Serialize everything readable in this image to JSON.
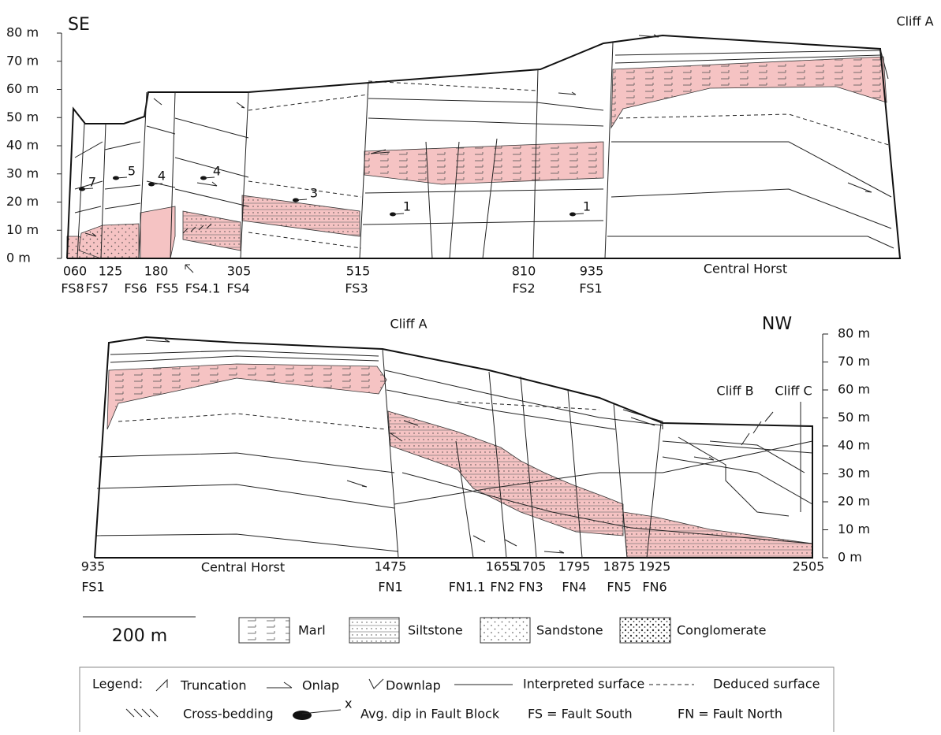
{
  "top_section": {
    "side": "SE",
    "cliff": "Cliff A",
    "y_axis": [
      "80 m",
      "70 m",
      "60 m",
      "50 m",
      "40 m",
      "30 m",
      "20 m",
      "10 m",
      "0 m"
    ],
    "distances": [
      "0",
      "60",
      "125",
      "180",
      "305",
      "515",
      "810",
      "935"
    ],
    "faults": [
      "FS8",
      "FS7",
      "FS6",
      "FS5",
      "FS4.1",
      "FS4",
      "FS3",
      "FS2",
      "FS1"
    ],
    "central": "Central Horst",
    "dips": [
      "7",
      "5",
      "4",
      "4",
      "3",
      "1",
      "1"
    ]
  },
  "bottom_section": {
    "side": "NW",
    "cliffs": [
      "Cliff A",
      "Cliff B",
      "Cliff C"
    ],
    "y_axis": [
      "80 m",
      "70 m",
      "60 m",
      "50 m",
      "40 m",
      "30 m",
      "20 m",
      "10 m",
      "0 m"
    ],
    "distances": [
      "935",
      "1475",
      "1655",
      "1705",
      "1795",
      "1875",
      "1925",
      "2505"
    ],
    "faults": [
      "FS1",
      "FN1",
      "FN1.1",
      "FN2",
      "FN3",
      "FN4",
      "FN5",
      "FN6"
    ],
    "central": "Central Horst"
  },
  "lithology": {
    "scale": "200 m",
    "items": [
      "Marl",
      "Siltstone",
      "Sandstone",
      "Conglomerate"
    ]
  },
  "legend": {
    "title": "Legend:",
    "truncation": "Truncation",
    "onlap": "Onlap",
    "downlap": "Downlap",
    "interpreted": "Interpreted surface",
    "deduced": "Deduced surface",
    "cross_bedding": "Cross-bedding",
    "dip_marker": "x",
    "dip": "Avg. dip in Fault Block",
    "fs": "FS = Fault South",
    "fn": "FN = Fault North"
  }
}
